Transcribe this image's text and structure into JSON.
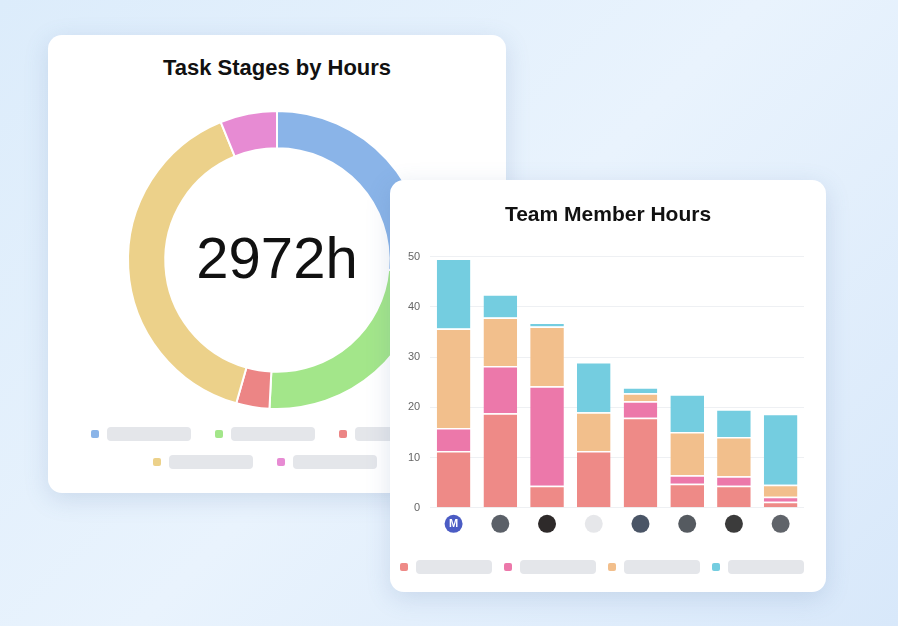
{
  "chart_data": [
    {
      "type": "doughnut",
      "title": "Task Stages by Hours",
      "annotations": [
        "2972h"
      ],
      "values": [
        784,
        726,
        107,
        1172,
        183
      ],
      "colors": [
        "#8ab4e8",
        "#a3e68a",
        "#ec8585",
        "#ecd18a",
        "#e78bd3"
      ],
      "legend": "bottom"
    },
    {
      "type": "bar",
      "title": "Team Member Hours",
      "categories": [
        "M",
        null,
        null,
        null,
        null,
        null,
        null,
        null
      ],
      "stacked": true,
      "grid": true,
      "legend": "bottom",
      "ylim": [
        0,
        50
      ],
      "yticks": [
        0,
        10,
        20,
        30,
        40,
        50
      ],
      "series": [
        {
          "color": "#ee8a87",
          "values": [
            11.3,
            18.8,
            4.4,
            11.3,
            17.9,
            4.8,
            4.4,
            1.2
          ]
        },
        {
          "color": "#ec78aa",
          "values": [
            4.6,
            9.4,
            19.8,
            0,
            3.3,
            1.7,
            1.9,
            1.0
          ]
        },
        {
          "color": "#f2bf8c",
          "values": [
            19.8,
            9.7,
            11.9,
            7.7,
            1.6,
            8.6,
            7.8,
            2.4
          ]
        },
        {
          "color": "#74cde0",
          "values": [
            13.9,
            4.6,
            0.8,
            10.0,
            1.2,
            7.5,
            5.5,
            14.1
          ]
        }
      ]
    }
  ]
}
